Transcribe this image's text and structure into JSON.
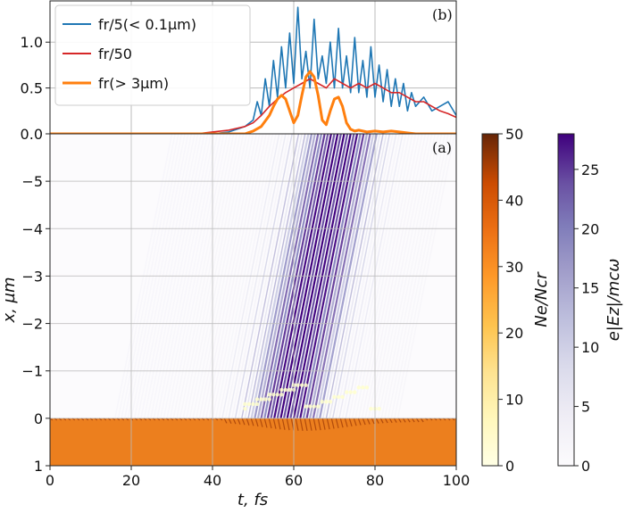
{
  "chart_data": [
    {
      "panel": "(b)",
      "type": "line",
      "ylim": [
        0,
        1.45
      ],
      "xlim": [
        0,
        100
      ],
      "yticks": [
        0.0,
        0.5,
        1.0
      ],
      "ytick_labels": [
        "0.0",
        "0.5",
        "1.0"
      ],
      "grid": true,
      "legend_position": "top-left",
      "series": [
        {
          "name": "f_r/5(< 0.1μm)",
          "legend_label": "fr/5(< 0.1µm)",
          "color": "#1f77b4",
          "x": [
            0,
            40,
            44,
            46,
            48,
            50,
            51,
            52,
            53,
            54,
            55,
            56,
            57,
            58,
            59,
            60,
            61,
            62,
            63,
            64,
            65,
            66,
            67,
            68,
            69,
            70,
            71,
            72,
            73,
            74,
            75,
            76,
            77,
            78,
            79,
            80,
            81,
            82,
            83,
            84,
            85,
            86,
            87,
            88,
            89,
            90,
            92,
            94,
            96,
            98,
            100
          ],
          "values": [
            0,
            0,
            0.02,
            0.05,
            0.08,
            0.15,
            0.35,
            0.2,
            0.6,
            0.3,
            0.8,
            0.4,
            0.95,
            0.5,
            1.1,
            0.55,
            1.38,
            0.6,
            0.9,
            0.5,
            1.25,
            0.6,
            0.85,
            0.55,
            1.0,
            0.5,
            1.15,
            0.5,
            0.85,
            0.45,
            1.05,
            0.45,
            0.8,
            0.4,
            0.95,
            0.4,
            0.75,
            0.35,
            0.7,
            0.3,
            0.6,
            0.3,
            0.55,
            0.25,
            0.45,
            0.3,
            0.4,
            0.25,
            0.3,
            0.35,
            0.2
          ]
        },
        {
          "name": "f_r/50",
          "legend_label": "fr/50",
          "color": "#d62728",
          "x": [
            0,
            36,
            40,
            44,
            48,
            50,
            52,
            54,
            56,
            58,
            60,
            62,
            64,
            66,
            68,
            70,
            72,
            74,
            76,
            78,
            80,
            82,
            84,
            86,
            88,
            90,
            92,
            94,
            96,
            98,
            100
          ],
          "values": [
            0,
            0,
            0.02,
            0.04,
            0.08,
            0.12,
            0.2,
            0.3,
            0.38,
            0.45,
            0.5,
            0.55,
            0.6,
            0.55,
            0.5,
            0.6,
            0.55,
            0.5,
            0.55,
            0.5,
            0.55,
            0.5,
            0.45,
            0.45,
            0.4,
            0.35,
            0.35,
            0.3,
            0.25,
            0.22,
            0.18
          ]
        },
        {
          "name": "f_r(> 3μm)",
          "legend_label": "fr(> 3µm)",
          "color": "#ff7f0e",
          "x": [
            0,
            48,
            50,
            52,
            54,
            55,
            56,
            57,
            58,
            59,
            60,
            61,
            62,
            63,
            64,
            65,
            66,
            67,
            68,
            69,
            70,
            71,
            72,
            73,
            74,
            75,
            76,
            78,
            80,
            82,
            84,
            86,
            88,
            90,
            100
          ],
          "values": [
            0,
            0,
            0.03,
            0.08,
            0.2,
            0.3,
            0.38,
            0.42,
            0.38,
            0.25,
            0.12,
            0.2,
            0.42,
            0.62,
            0.68,
            0.62,
            0.42,
            0.15,
            0.1,
            0.25,
            0.38,
            0.4,
            0.3,
            0.12,
            0.05,
            0.03,
            0.04,
            0.02,
            0.03,
            0.02,
            0.03,
            0.02,
            0.01,
            0.0,
            0.0
          ]
        }
      ]
    },
    {
      "panel": "(a)",
      "type": "heatmap",
      "xlabel": "t, fs",
      "ylabel": "x, µm",
      "xlim": [
        0,
        100
      ],
      "ylim": [
        1,
        -6
      ],
      "xticks": [
        0,
        20,
        40,
        60,
        80,
        100
      ],
      "xtick_labels": [
        "0",
        "20",
        "40",
        "60",
        "80",
        "100"
      ],
      "yticks": [
        -5,
        -4,
        -3,
        -2,
        -1,
        0,
        1
      ],
      "ytick_labels": [
        "−5",
        "−4",
        "−3",
        "−2",
        "−1",
        "0",
        "1"
      ],
      "grid": true,
      "features": {
        "plasma_surface_x": 0,
        "plasma_density_bulk": 30,
        "wave_region_t": [
          40,
          95
        ]
      },
      "colorbars": [
        {
          "label": "Ne/Ncr",
          "range": [
            0,
            50
          ],
          "ticks": [
            0,
            10,
            20,
            30,
            40,
            50
          ],
          "tick_labels": [
            "0",
            "10",
            "20",
            "30",
            "40",
            "50"
          ],
          "colormap": "YlOrBr",
          "colors": [
            "#ffffe5",
            "#fee391",
            "#fec44f",
            "#fe9929",
            "#ec7014",
            "#cc4c02",
            "#993404",
            "#662506"
          ]
        },
        {
          "label": "e|Ez|/mcω",
          "range": [
            0,
            28
          ],
          "ticks": [
            0,
            5,
            10,
            15,
            20,
            25
          ],
          "tick_labels": [
            "0",
            "5",
            "10",
            "15",
            "20",
            "25"
          ],
          "colormap": "Purples",
          "colors": [
            "#fcfbfd",
            "#efedf5",
            "#dadaeb",
            "#bcbddc",
            "#9e9ac8",
            "#807dba",
            "#6a51a3",
            "#54278f",
            "#3f007d"
          ]
        }
      ]
    }
  ],
  "legend": {
    "entries": [
      "fr/5(< 0.1µm)",
      "fr/50",
      "fr(> 3µm)"
    ]
  },
  "labels": {
    "panel_b": "(b)",
    "panel_a": "(a)",
    "xlabel": "t,  fs",
    "ylabel": "x,  µm",
    "cb1_label": "Ne/Ncr",
    "cb2_label": "e|Ez|/mcω"
  }
}
